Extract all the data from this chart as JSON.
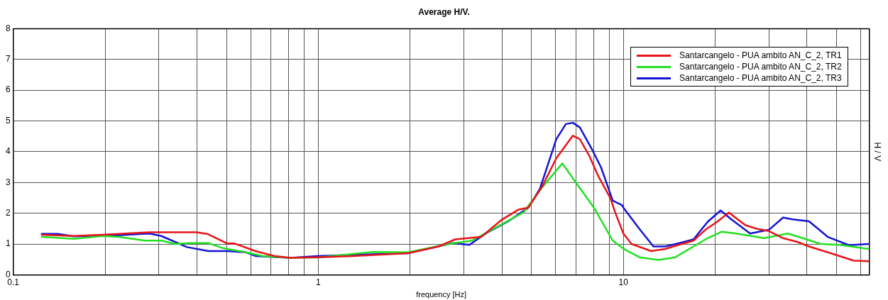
{
  "chart_data": {
    "type": "line",
    "title": "Average H/V.",
    "xlabel": "frequency [Hz]",
    "ylabel": "H / V",
    "log": "x",
    "grid": true,
    "legend": "top right",
    "line_style": "solid",
    "marker": "none",
    "xlim": [
      0.1,
      64
    ],
    "ylim": [
      0,
      8
    ],
    "xticks": [
      0.1,
      {
        "value": 0.2,
        "label": null
      },
      {
        "value": 0.3,
        "label": null
      },
      {
        "value": 0.4,
        "label": null
      },
      {
        "value": 0.5,
        "label": null
      },
      {
        "value": 0.6,
        "label": null
      },
      {
        "value": 0.7,
        "label": null
      },
      {
        "value": 0.8,
        "label": null
      },
      {
        "value": 0.9,
        "label": null
      },
      1,
      {
        "value": 2,
        "label": null
      },
      {
        "value": 3,
        "label": null
      },
      {
        "value": 4,
        "label": null
      },
      {
        "value": 5,
        "label": null
      },
      {
        "value": 6,
        "label": null
      },
      {
        "value": 7,
        "label": null
      },
      {
        "value": 8,
        "label": null
      },
      {
        "value": 9,
        "label": null
      },
      10,
      {
        "value": 20,
        "label": null
      },
      {
        "value": 30,
        "label": null
      },
      {
        "value": 40,
        "label": null
      },
      {
        "value": 50,
        "label": null
      },
      {
        "value": 60,
        "label": null
      }
    ],
    "yticks": [
      0,
      1,
      2,
      3,
      4,
      5,
      6,
      7,
      8
    ],
    "series": [
      {
        "name": "Santarcangelo - PUA ambito AN_C_2, TR1",
        "color": "#e8141a",
        "x": [
          0.124,
          0.158,
          0.196,
          0.279,
          0.346,
          0.399,
          0.432,
          0.502,
          0.53,
          0.622,
          0.718,
          0.811,
          1.0,
          1.31,
          1.97,
          2.48,
          2.81,
          3.42,
          4.01,
          4.54,
          4.88,
          5.42,
          6.03,
          6.83,
          7.2,
          7.73,
          8.3,
          9.07,
          9.4,
          10.0,
          10.64,
          12.33,
          13.73,
          15.54,
          16.99,
          18.57,
          20.29,
          22.18,
          25.12,
          27.46,
          30.01,
          33.39,
          37.15,
          40.6,
          46.8,
          56.92,
          63.6
        ],
        "values": [
          1.3,
          1.26,
          1.3,
          1.38,
          1.38,
          1.38,
          1.33,
          1.02,
          1.02,
          0.77,
          0.61,
          0.55,
          0.57,
          0.61,
          0.7,
          0.92,
          1.15,
          1.23,
          1.8,
          2.12,
          2.18,
          2.87,
          3.79,
          4.52,
          4.41,
          3.87,
          3.18,
          2.49,
          2.03,
          1.34,
          1.0,
          0.77,
          0.84,
          1.0,
          1.11,
          1.46,
          1.72,
          2.02,
          1.61,
          1.49,
          1.42,
          1.19,
          1.07,
          0.92,
          0.73,
          0.46,
          0.44
        ]
      },
      {
        "name": "Santarcangelo - PUA ambito AN_C_2, TR2",
        "color": "#22e022",
        "x": [
          0.124,
          0.158,
          0.196,
          0.222,
          0.27,
          0.306,
          0.34,
          0.378,
          0.436,
          0.485,
          0.58,
          0.656,
          0.811,
          1.0,
          1.51,
          1.97,
          2.67,
          3.19,
          4.01,
          4.71,
          5.42,
          6.31,
          6.95,
          8.01,
          9.23,
          10.0,
          11.29,
          13.01,
          14.74,
          16.99,
          18.9,
          21.03,
          23.39,
          28.96,
          34.59,
          39.88,
          44.38,
          51.17,
          63.6
        ],
        "values": [
          1.23,
          1.17,
          1.26,
          1.23,
          1.11,
          1.11,
          1.0,
          1.03,
          1.03,
          0.87,
          0.73,
          0.61,
          0.55,
          0.56,
          0.74,
          0.73,
          1.0,
          1.11,
          1.65,
          2.03,
          2.84,
          3.62,
          3.03,
          2.18,
          1.11,
          0.85,
          0.57,
          0.48,
          0.56,
          0.92,
          1.19,
          1.4,
          1.34,
          1.19,
          1.34,
          1.15,
          1.0,
          0.97,
          0.84
        ]
      },
      {
        "name": "Santarcangelo - PUA ambito AN_C_2, TR3",
        "color": "#1414d2",
        "x": [
          0.124,
          0.14,
          0.158,
          0.214,
          0.279,
          0.306,
          0.371,
          0.436,
          0.502,
          0.58,
          0.622,
          0.811,
          1.0,
          1.97,
          2.76,
          3.13,
          3.54,
          4.23,
          4.88,
          5.33,
          6.03,
          6.48,
          6.83,
          7.2,
          7.87,
          8.45,
          9.23,
          9.91,
          10.0,
          11.29,
          12.55,
          13.73,
          15.27,
          16.99,
          18.9,
          20.84,
          22.59,
          26.03,
          30.01,
          33.39,
          35.84,
          40.6,
          46.8,
          54.94,
          63.6
        ],
        "values": [
          1.33,
          1.33,
          1.25,
          1.28,
          1.34,
          1.26,
          0.9,
          0.77,
          0.77,
          0.73,
          0.61,
          0.55,
          0.61,
          0.7,
          1.03,
          0.97,
          1.34,
          1.76,
          2.18,
          2.8,
          4.41,
          4.9,
          4.94,
          4.79,
          4.1,
          3.49,
          2.41,
          2.26,
          2.18,
          1.49,
          0.92,
          0.92,
          1.03,
          1.15,
          1.72,
          2.09,
          1.8,
          1.34,
          1.46,
          1.86,
          1.8,
          1.74,
          1.23,
          0.96,
          1.0
        ]
      }
    ]
  }
}
